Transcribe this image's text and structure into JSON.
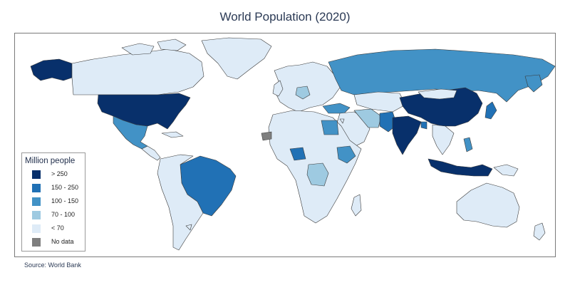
{
  "title": "World Population (2020)",
  "source": "Source:  World Bank",
  "legend": {
    "title": "Million people",
    "items": [
      {
        "label": "> 250",
        "color": "#08306b"
      },
      {
        "label": "150 - 250",
        "color": "#2171b5"
      },
      {
        "label": "100 - 150",
        "color": "#4292c6"
      },
      {
        "label": "70 - 100",
        "color": "#9ecae1"
      },
      {
        "label": "< 70",
        "color": "#deebf7"
      },
      {
        "label": "No data",
        "color": "#7f7f7f"
      }
    ]
  },
  "colors": {
    "ocean": "#ffffff",
    "border": "#3a3a3a"
  }
}
